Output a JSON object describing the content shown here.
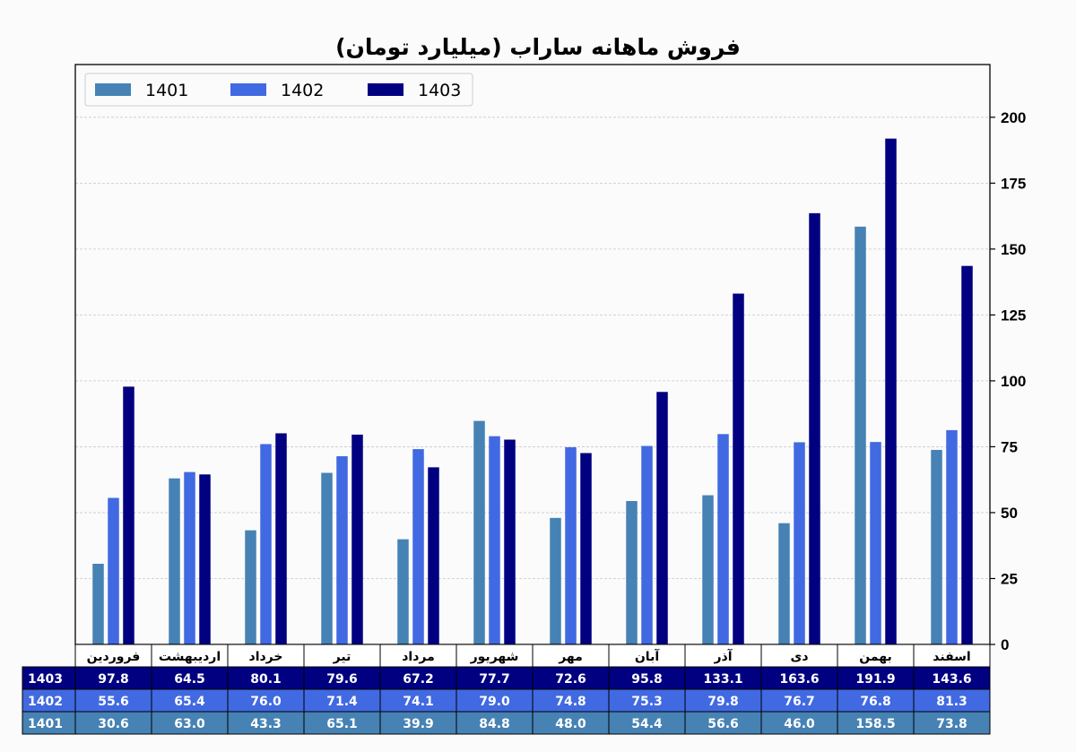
{
  "chart_data": {
    "type": "bar",
    "title": "فروش ماهانه ساراب (میلیارد تومان)",
    "xlabel": "",
    "ylabel": "",
    "categories": [
      "فروردین",
      "اردیبهشت",
      "خرداد",
      "تیر",
      "مرداد",
      "شهریور",
      "مهر",
      "آبان",
      "آذر",
      "دی",
      "بهمن",
      "اسفند"
    ],
    "series": [
      {
        "name": "1401",
        "color": "#4682b4",
        "values": [
          30.6,
          63.0,
          43.3,
          65.1,
          39.9,
          84.8,
          48.0,
          54.4,
          56.6,
          46.0,
          158.5,
          73.8
        ]
      },
      {
        "name": "1402",
        "color": "#4169e1",
        "values": [
          55.6,
          65.4,
          76.0,
          71.4,
          74.1,
          79.0,
          74.8,
          75.3,
          79.8,
          76.7,
          76.8,
          81.3
        ]
      },
      {
        "name": "1403",
        "color": "#000080",
        "values": [
          97.8,
          64.5,
          80.1,
          79.6,
          67.2,
          77.7,
          72.6,
          95.8,
          133.1,
          163.6,
          191.9,
          143.6
        ]
      }
    ],
    "ylim": [
      0,
      220
    ],
    "yticks": [
      0,
      25,
      50,
      75,
      100,
      125,
      150,
      175,
      200
    ],
    "y_axis_side": "right",
    "grid": "horizontal-dashed",
    "legend": "top-left",
    "table": {
      "row_order": [
        "1403",
        "1402",
        "1401"
      ],
      "decimals": 1
    }
  }
}
